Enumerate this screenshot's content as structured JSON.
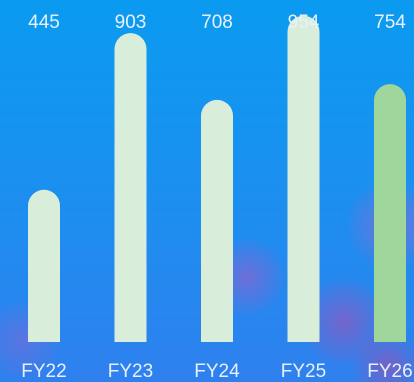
{
  "chart_data": {
    "type": "bar",
    "categories": [
      "FY22",
      "FY23",
      "FY24",
      "FY25",
      "FY26"
    ],
    "values": [
      445,
      903,
      708,
      954,
      754
    ],
    "title": "",
    "xlabel": "",
    "ylabel": "",
    "ylim": [
      0,
      1000
    ],
    "grid": false,
    "legend": "none",
    "colors": {
      "bar": "#d8eeda",
      "highlight_bar": "#9ed69c",
      "label": "#e8f1fb",
      "background_top": "#0a9bf0",
      "background_bottom": "#2f80ee"
    },
    "highlight_index": 4
  }
}
